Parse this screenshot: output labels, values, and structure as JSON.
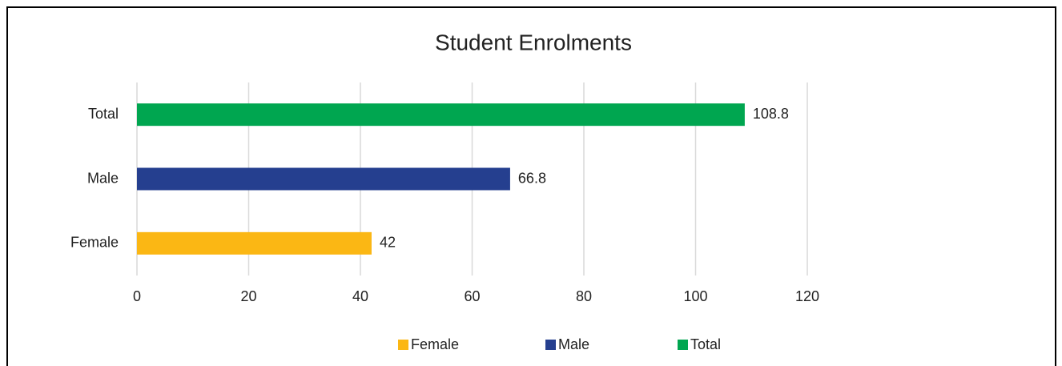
{
  "chart_data": {
    "type": "bar",
    "orientation": "horizontal",
    "title": "Student Enrolments",
    "categories": [
      "Female",
      "Male",
      "Total"
    ],
    "values": [
      42,
      66.8,
      108.8
    ],
    "colors": [
      "#fbb714",
      "#253f8f",
      "#00a650"
    ],
    "xlim": [
      0,
      120
    ],
    "xticks": [
      0,
      20,
      40,
      60,
      80,
      100,
      120
    ],
    "grid": true,
    "legend": "bottom"
  }
}
